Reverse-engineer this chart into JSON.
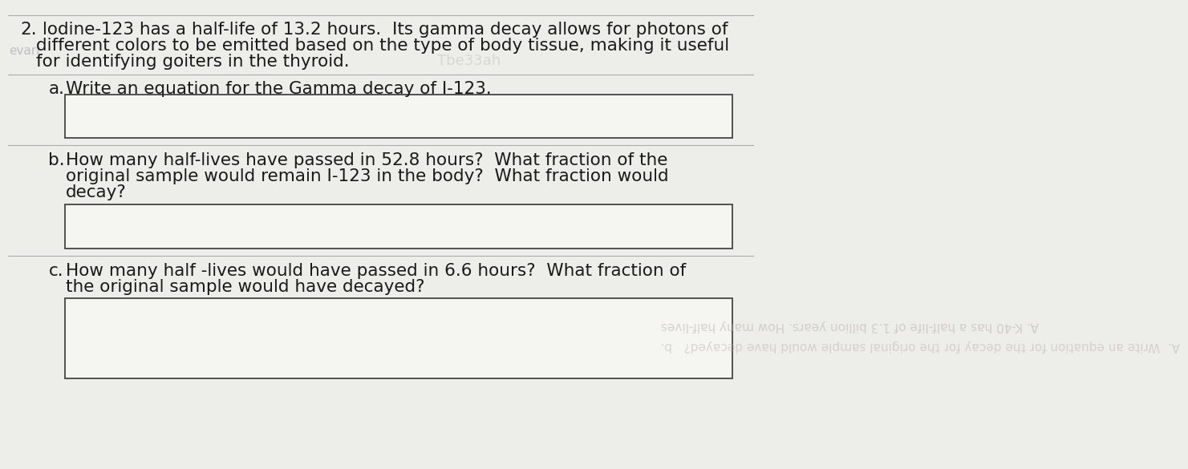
{
  "bg_color": "#ededea",
  "text_color": "#1a1a1a",
  "box_color": "#f5f5f2",
  "box_border_color": "#444444",
  "sep_color": "#aaaaaa",
  "question_number": "2.",
  "intro_lines": [
    "lodine-123 has a half-life of 13.2 hours.  Its gamma decay allows for photons of",
    "different colors to be emitted based on the type of body tissue, making it useful",
    "for identifying goiters in the thyroid."
  ],
  "watermark_text": "Tbe33ah",
  "left_watermark": "evarl",
  "part_a_label": "a.",
  "part_a_text": "Write an equation for the Gamma decay of I-123.",
  "part_b_label": "b.",
  "part_b_lines": [
    "How many half-lives have passed in 52.8 hours?  What fraction of the",
    "original sample would remain I-123 in the body?  What fraction would",
    "decay?"
  ],
  "part_c_label": "c.",
  "part_c_lines": [
    "How many half -lives would have passed in 6.6 hours?  What fraction of",
    "the original sample would have decayed?"
  ],
  "box_c_ghost_line1": "A. K-40 has a half-life of 1.3 billion years. How many half-lives",
  "box_c_ghost_line2": "A.  Write an equation for the decay for the original sample would have decayed?   b.",
  "font_size_main": 15.5
}
